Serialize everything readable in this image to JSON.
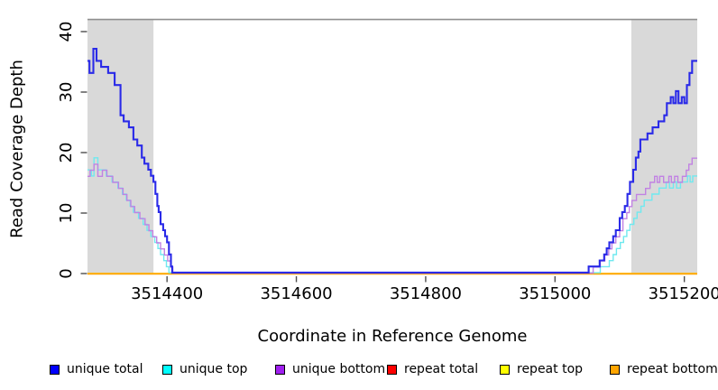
{
  "figure": {
    "background": "#ffffff",
    "band_color": "#d9d9d9",
    "tick_color": "#4d4d4d",
    "top_rule_color": "#8f8f8f"
  },
  "chart_data": {
    "type": "line",
    "step": true,
    "title": "",
    "xlabel": "Coordinate in Reference Genome",
    "ylabel": "Read Coverage Depth",
    "xlim": [
      3514277,
      3515220
    ],
    "ylim": [
      0,
      42.2
    ],
    "xticks": [
      3514400,
      3514600,
      3514800,
      3515000,
      3515200
    ],
    "yticks": [
      0,
      10,
      20,
      30,
      40
    ],
    "grid": false,
    "legend_position": "bottom",
    "top_rule_y": 42,
    "highlight_bands": [
      {
        "x0": 3514277,
        "x1": 3514379
      },
      {
        "x0": 3515118,
        "x1": 3515220
      }
    ],
    "series": [
      {
        "name": "repeat total",
        "color": "#ff0000",
        "line_color": "#ff0000",
        "width": 1.4,
        "y_offset": 0,
        "points": [
          [
            3514277,
            0
          ],
          [
            3515220,
            0
          ]
        ]
      },
      {
        "name": "repeat top",
        "color": "#ffff00",
        "line_color": "#ffff00",
        "width": 1.4,
        "y_offset": 0,
        "points": [
          [
            3514277,
            0
          ],
          [
            3515220,
            0
          ]
        ]
      },
      {
        "name": "repeat bottom",
        "color": "#ffa500",
        "line_color": "#ffa500",
        "width": 1.6,
        "y_offset": 0.4,
        "points": [
          [
            3514277,
            0
          ],
          [
            3515220,
            0
          ]
        ]
      },
      {
        "name": "unique top",
        "color": "#00ffff",
        "line_color": "#6fe9ef",
        "width": 1.4,
        "y_offset": -0.9,
        "points": [
          [
            3514277,
            17
          ],
          [
            3514283,
            16
          ],
          [
            3514287,
            19
          ],
          [
            3514293,
            17
          ],
          [
            3514306,
            16
          ],
          [
            3514315,
            15
          ],
          [
            3514324,
            14
          ],
          [
            3514331,
            13
          ],
          [
            3514337,
            12
          ],
          [
            3514343,
            11
          ],
          [
            3514348,
            10
          ],
          [
            3514356,
            9
          ],
          [
            3514363,
            8
          ],
          [
            3514369,
            7
          ],
          [
            3514375,
            6
          ],
          [
            3514381,
            5
          ],
          [
            3514386,
            4
          ],
          [
            3514390,
            3
          ],
          [
            3514395,
            2
          ],
          [
            3514399,
            1
          ],
          [
            3514403,
            0
          ],
          [
            3515070,
            1
          ],
          [
            3515084,
            2
          ],
          [
            3515090,
            3
          ],
          [
            3515095,
            4
          ],
          [
            3515101,
            5
          ],
          [
            3515106,
            6
          ],
          [
            3515111,
            7
          ],
          [
            3515116,
            8
          ],
          [
            3515122,
            9
          ],
          [
            3515127,
            10
          ],
          [
            3515133,
            11
          ],
          [
            3515138,
            12
          ],
          [
            3515150,
            13
          ],
          [
            3515161,
            14
          ],
          [
            3515172,
            15
          ],
          [
            3515177,
            14
          ],
          [
            3515183,
            15
          ],
          [
            3515188,
            14
          ],
          [
            3515194,
            15
          ],
          [
            3515205,
            16
          ],
          [
            3515209,
            15
          ],
          [
            3515213,
            16
          ],
          [
            3515219,
            16
          ]
        ]
      },
      {
        "name": "unique bottom",
        "color": "#a020f0",
        "line_color": "#c182e3",
        "width": 1.4,
        "y_offset": -0.5,
        "points": [
          [
            3514277,
            16
          ],
          [
            3514281,
            17
          ],
          [
            3514287,
            18
          ],
          [
            3514293,
            16
          ],
          [
            3514300,
            17
          ],
          [
            3514307,
            16
          ],
          [
            3514316,
            15
          ],
          [
            3514325,
            14
          ],
          [
            3514332,
            13
          ],
          [
            3514338,
            12
          ],
          [
            3514344,
            11
          ],
          [
            3514350,
            10
          ],
          [
            3514358,
            9
          ],
          [
            3514366,
            8
          ],
          [
            3514372,
            7
          ],
          [
            3514378,
            6
          ],
          [
            3514384,
            5
          ],
          [
            3514390,
            4
          ],
          [
            3514396,
            3
          ],
          [
            3514401,
            2
          ],
          [
            3514406,
            1
          ],
          [
            3514409,
            0
          ],
          [
            3515059,
            1
          ],
          [
            3515070,
            2
          ],
          [
            3515077,
            3
          ],
          [
            3515083,
            4
          ],
          [
            3515088,
            5
          ],
          [
            3515094,
            6
          ],
          [
            3515100,
            7
          ],
          [
            3515105,
            9
          ],
          [
            3515111,
            10
          ],
          [
            3515115,
            11
          ],
          [
            3515119,
            12
          ],
          [
            3515126,
            13
          ],
          [
            3515140,
            14
          ],
          [
            3515147,
            15
          ],
          [
            3515154,
            16
          ],
          [
            3515158,
            15
          ],
          [
            3515162,
            16
          ],
          [
            3515168,
            15
          ],
          [
            3515176,
            16
          ],
          [
            3515180,
            15
          ],
          [
            3515185,
            16
          ],
          [
            3515190,
            15
          ],
          [
            3515197,
            16
          ],
          [
            3515203,
            17
          ],
          [
            3515207,
            18
          ],
          [
            3515212,
            19
          ],
          [
            3515219,
            19
          ]
        ]
      },
      {
        "name": "unique total",
        "color": "#0000ff",
        "line_color": "#2a2ae8",
        "width": 2.1,
        "y_offset": -1.1,
        "points": [
          [
            3514277,
            35
          ],
          [
            3514280,
            33
          ],
          [
            3514286,
            37
          ],
          [
            3514291,
            35
          ],
          [
            3514298,
            34
          ],
          [
            3514309,
            33
          ],
          [
            3514319,
            31
          ],
          [
            3514328,
            26
          ],
          [
            3514333,
            25
          ],
          [
            3514341,
            24
          ],
          [
            3514348,
            22
          ],
          [
            3514354,
            21
          ],
          [
            3514361,
            19
          ],
          [
            3514365,
            18
          ],
          [
            3514371,
            17
          ],
          [
            3514375,
            16
          ],
          [
            3514379,
            15
          ],
          [
            3514382,
            13
          ],
          [
            3514385,
            11
          ],
          [
            3514387,
            10
          ],
          [
            3514390,
            8
          ],
          [
            3514394,
            7
          ],
          [
            3514397,
            6
          ],
          [
            3514400,
            5
          ],
          [
            3514403,
            3
          ],
          [
            3514406,
            1
          ],
          [
            3514408,
            0
          ],
          [
            3515052,
            1
          ],
          [
            3515069,
            2
          ],
          [
            3515076,
            3
          ],
          [
            3515080,
            4
          ],
          [
            3515084,
            5
          ],
          [
            3515090,
            6
          ],
          [
            3515094,
            7
          ],
          [
            3515100,
            9
          ],
          [
            3515104,
            10
          ],
          [
            3515108,
            11
          ],
          [
            3515112,
            13
          ],
          [
            3515116,
            15
          ],
          [
            3515121,
            17
          ],
          [
            3515125,
            19
          ],
          [
            3515129,
            20
          ],
          [
            3515132,
            22
          ],
          [
            3515143,
            23
          ],
          [
            3515151,
            24
          ],
          [
            3515160,
            25
          ],
          [
            3515169,
            26
          ],
          [
            3515173,
            28
          ],
          [
            3515179,
            29
          ],
          [
            3515183,
            28
          ],
          [
            3515187,
            30
          ],
          [
            3515191,
            28
          ],
          [
            3515196,
            29
          ],
          [
            3515200,
            28
          ],
          [
            3515204,
            31
          ],
          [
            3515208,
            33
          ],
          [
            3515212,
            35
          ],
          [
            3515219,
            35
          ]
        ]
      }
    ],
    "legend": [
      {
        "label": "unique total",
        "color": "#0000ff"
      },
      {
        "label": "unique top",
        "color": "#00ffff"
      },
      {
        "label": "unique bottom",
        "color": "#a020f0"
      },
      {
        "label": "repeat total",
        "color": "#ff0000"
      },
      {
        "label": "repeat top",
        "color": "#ffff00"
      },
      {
        "label": "repeat bottom",
        "color": "#ffa500"
      }
    ]
  }
}
